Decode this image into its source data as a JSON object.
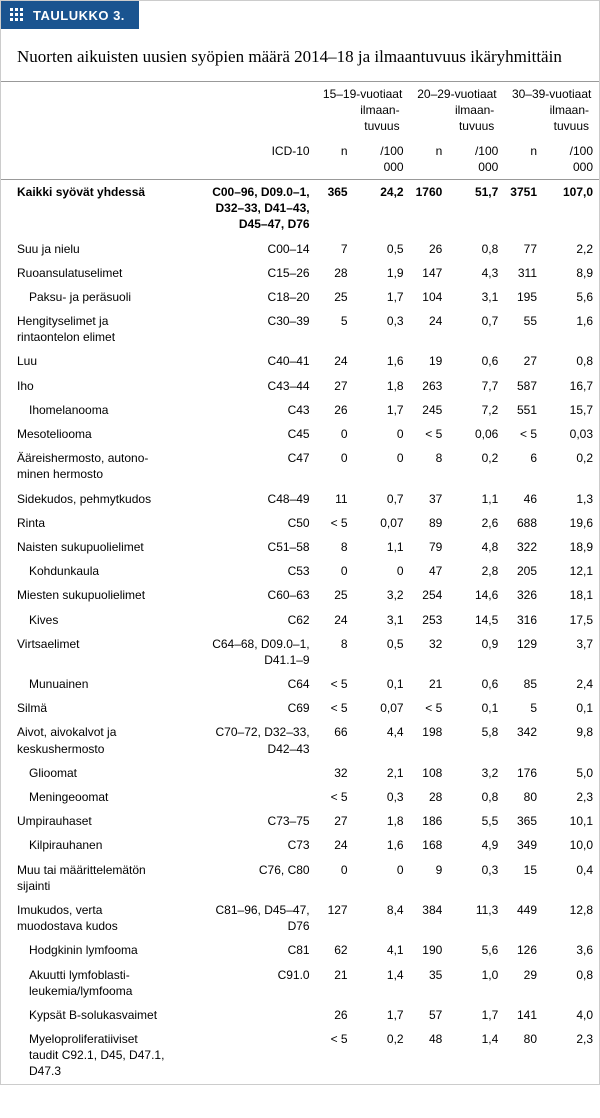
{
  "header": {
    "tab_label": "TAULUKKO 3."
  },
  "title": "Nuorten aikuisten uusien syöpien määrä 2014–18 ja ilmaantuvuus ikäryhmittäin",
  "columns": {
    "icd_label": "ICD-10",
    "groups": [
      {
        "age": "15–19-vuotiaat",
        "sub": "ilmaan-\ntuvuus",
        "n": "n",
        "rate": "/100 000"
      },
      {
        "age": "20–29-vuotiaat",
        "sub": "ilmaan-\ntuvuus",
        "n": "n",
        "rate": "/100 000"
      },
      {
        "age": "30–39-vuotiaat",
        "sub": "ilmaan-\ntuvuus",
        "n": "n",
        "rate": "/100 000"
      }
    ]
  },
  "rows": [
    {
      "label": "Kaikki syövät yhdessä",
      "bold": true,
      "icd": "C00–96, D09.0–1,\nD32–33, D41–43,\nD45–47, D76",
      "v": [
        "365",
        "24,2",
        "1760",
        "51,7",
        "3751",
        "107,0"
      ]
    },
    {
      "label": "Suu ja nielu",
      "icd": "C00–14",
      "v": [
        "7",
        "0,5",
        "26",
        "0,8",
        "77",
        "2,2"
      ]
    },
    {
      "label": "Ruoansulatuselimet",
      "icd": "C15–26",
      "v": [
        "28",
        "1,9",
        "147",
        "4,3",
        "311",
        "8,9"
      ]
    },
    {
      "label": "Paksu- ja peräsuoli",
      "indent": true,
      "icd": "C18–20",
      "v": [
        "25",
        "1,7",
        "104",
        "3,1",
        "195",
        "5,6"
      ]
    },
    {
      "label": "Hengityselimet ja\nrintaontelon elimet",
      "icd": "C30–39",
      "v": [
        "5",
        "0,3",
        "24",
        "0,7",
        "55",
        "1,6"
      ]
    },
    {
      "label": "Luu",
      "icd": "C40–41",
      "v": [
        "24",
        "1,6",
        "19",
        "0,6",
        "27",
        "0,8"
      ]
    },
    {
      "label": "Iho",
      "icd": "C43–44",
      "v": [
        "27",
        "1,8",
        "263",
        "7,7",
        "587",
        "16,7"
      ]
    },
    {
      "label": "Ihomelanooma",
      "indent": true,
      "icd": "C43",
      "v": [
        "26",
        "1,7",
        "245",
        "7,2",
        "551",
        "15,7"
      ]
    },
    {
      "label": "Mesoteliooma",
      "icd": "C45",
      "v": [
        "0",
        "0",
        "< 5",
        "0,06",
        "< 5",
        "0,03"
      ]
    },
    {
      "label": "Ääreishermosto, autono-\nminen hermosto",
      "icd": "C47",
      "v": [
        "0",
        "0",
        "8",
        "0,2",
        "6",
        "0,2"
      ]
    },
    {
      "label": "Sidekudos, pehmytkudos",
      "icd": "C48–49",
      "v": [
        "11",
        "0,7",
        "37",
        "1,1",
        "46",
        "1,3"
      ]
    },
    {
      "label": "Rinta",
      "icd": "C50",
      "v": [
        "< 5",
        "0,07",
        "89",
        "2,6",
        "688",
        "19,6"
      ]
    },
    {
      "label": "Naisten sukupuolielimet",
      "icd": "C51–58",
      "v": [
        "8",
        "1,1",
        "79",
        "4,8",
        "322",
        "18,9"
      ]
    },
    {
      "label": "Kohdunkaula",
      "indent": true,
      "icd": "C53",
      "v": [
        "0",
        "0",
        "47",
        "2,8",
        "205",
        "12,1"
      ]
    },
    {
      "label": "Miesten sukupuolielimet",
      "icd": "C60–63",
      "v": [
        "25",
        "3,2",
        "254",
        "14,6",
        "326",
        "18,1"
      ]
    },
    {
      "label": "Kives",
      "indent": true,
      "icd": "C62",
      "v": [
        "24",
        "3,1",
        "253",
        "14,5",
        "316",
        "17,5"
      ]
    },
    {
      "label": "Virtsaelimet",
      "icd": "C64–68, D09.0–1,\nD41.1–9",
      "v": [
        "8",
        "0,5",
        "32",
        "0,9",
        "129",
        "3,7"
      ]
    },
    {
      "label": "Munuainen",
      "indent": true,
      "icd": "C64",
      "v": [
        "< 5",
        "0,1",
        "21",
        "0,6",
        "85",
        "2,4"
      ]
    },
    {
      "label": "Silmä",
      "icd": "C69",
      "v": [
        "< 5",
        "0,07",
        "< 5",
        "0,1",
        "5",
        "0,1"
      ]
    },
    {
      "label": "Aivot, aivokalvot ja\nkeskushermosto",
      "icd": "C70–72, D32–33,\nD42–43",
      "v": [
        "66",
        "4,4",
        "198",
        "5,8",
        "342",
        "9,8"
      ]
    },
    {
      "label": "Glioomat",
      "indent": true,
      "icd": "",
      "v": [
        "32",
        "2,1",
        "108",
        "3,2",
        "176",
        "5,0"
      ]
    },
    {
      "label": "Meningeoomat",
      "indent": true,
      "icd": "",
      "v": [
        "< 5",
        "0,3",
        "28",
        "0,8",
        "80",
        "2,3"
      ]
    },
    {
      "label": "Umpirauhaset",
      "icd": "C73–75",
      "v": [
        "27",
        "1,8",
        "186",
        "5,5",
        "365",
        "10,1"
      ]
    },
    {
      "label": "Kilpirauhanen",
      "indent": true,
      "icd": "C73",
      "v": [
        "24",
        "1,6",
        "168",
        "4,9",
        "349",
        "10,0"
      ]
    },
    {
      "label": "Muu tai määrittelemätön\nsijainti",
      "icd": "C76, C80",
      "v": [
        "0",
        "0",
        "9",
        "0,3",
        "15",
        "0,4"
      ]
    },
    {
      "label": "Imukudos, verta\nmuodostava kudos",
      "icd": "C81–96, D45–47,\nD76",
      "v": [
        "127",
        "8,4",
        "384",
        "11,3",
        "449",
        "12,8"
      ]
    },
    {
      "label": "Hodgkinin lymfooma",
      "indent": true,
      "icd": "C81",
      "v": [
        "62",
        "4,1",
        "190",
        "5,6",
        "126",
        "3,6"
      ]
    },
    {
      "label": "Akuutti lymfoblasti-\nleukemia/lymfooma",
      "indent": true,
      "icd": "C91.0",
      "v": [
        "21",
        "1,4",
        "35",
        "1,0",
        "29",
        "0,8"
      ]
    },
    {
      "label": "Kypsät B-solukasvaimet",
      "indent": true,
      "icd": "",
      "v": [
        "26",
        "1,7",
        "57",
        "1,7",
        "141",
        "4,0"
      ]
    },
    {
      "label": "Myeloproliferatiiviset\ntaudit C92.1, D45, D47.1,\nD47.3",
      "indent": true,
      "icd": "",
      "v": [
        "< 5",
        "0,2",
        "48",
        "1,4",
        "80",
        "2,3"
      ]
    }
  ]
}
